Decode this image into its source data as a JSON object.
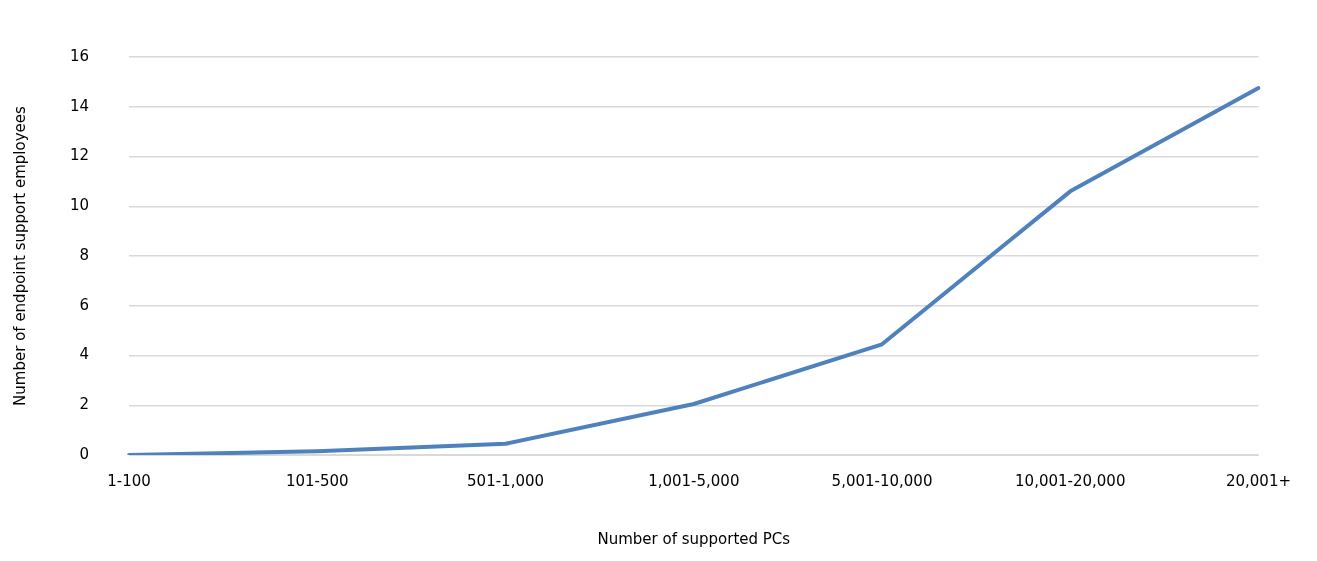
{
  "chart_data": {
    "type": "line",
    "xlabel": "Number of supported PCs",
    "ylabel": "Number of endpoint support employees",
    "categories": [
      "1-100",
      "101-500",
      "501-1,000",
      "1,001-5,000",
      "5,001-10,000",
      "10,001-20,000",
      "20,001+"
    ],
    "series": [
      {
        "color": "#4f81bd",
        "values": [
          0,
          0.15,
          0.45,
          2.05,
          4.45,
          10.6,
          14.75
        ]
      }
    ],
    "ylim": [
      0,
      16
    ],
    "yticks": [
      0,
      2,
      4,
      6,
      8,
      10,
      12,
      14,
      16
    ],
    "grid": "y",
    "legend": false,
    "marker": "none",
    "line_style": "solid"
  }
}
